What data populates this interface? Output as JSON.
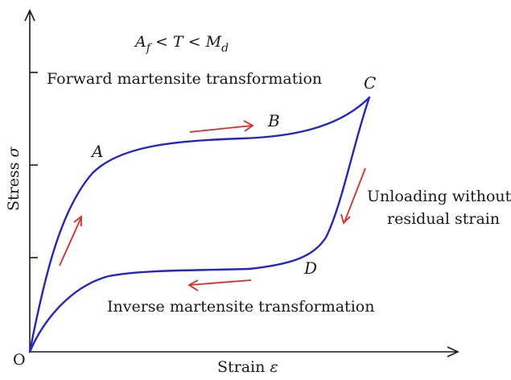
{
  "diagram": {
    "condition": {
      "A": "A",
      "f": "f",
      "lt1": " < ",
      "T": "T",
      "lt2": " < ",
      "M": "M",
      "d": "d"
    },
    "forward_label": "Forward martensite transformation",
    "inverse_label": "Inverse martensite transformation",
    "unloading_line1": "Unloading without",
    "unloading_line2": "residual strain",
    "points": {
      "O": "O",
      "A": "A",
      "B": "B",
      "C": "C",
      "D": "D"
    },
    "y_axis": {
      "label": "Stress",
      "symbol": "σ"
    },
    "x_axis": {
      "label": "Strain",
      "symbol": "ε"
    },
    "colors": {
      "curve": "#2424cc",
      "arrows": "#e02a2a",
      "axes": "#1a1a1a",
      "text": "#1a1a1a"
    }
  }
}
